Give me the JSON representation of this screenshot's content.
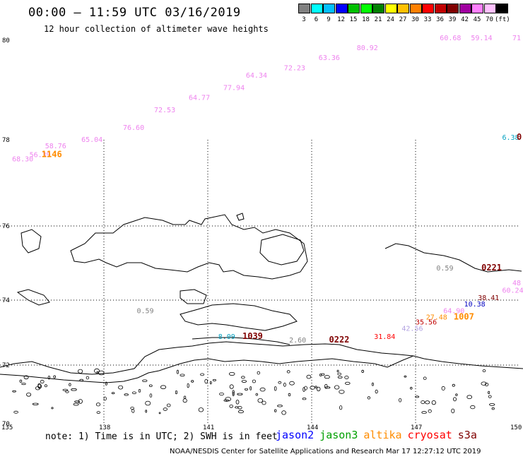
{
  "header": {
    "title": "00:00 – 11:59 UTC 03/16/2019",
    "subtitle": "12 hour collection of altimeter wave heights"
  },
  "colorbar": {
    "colors": [
      "#808080",
      "#00ffff",
      "#00bfff",
      "#0000ff",
      "#00c000",
      "#00ff00",
      "#008000",
      "#ffff00",
      "#ffc000",
      "#ff8000",
      "#ff0000",
      "#c00000",
      "#800000",
      "#a000a0",
      "#ff80ff",
      "#ffc0ff",
      "#000000"
    ],
    "labels": [
      "3",
      "6",
      "9",
      "12",
      "15",
      "18",
      "21",
      "24",
      "27",
      "30",
      "33",
      "36",
      "39",
      "42",
      "45",
      "70",
      "(ft)"
    ]
  },
  "axes": {
    "lat_ticks": [
      "80",
      "78",
      "76",
      "74",
      "72",
      "70"
    ],
    "lon_ticks": [
      "135",
      "138",
      "141",
      "144",
      "147",
      "150"
    ]
  },
  "observations": [
    {
      "text": "68.30",
      "color": "#ee82ee",
      "lon": 135.35,
      "lat": 77.5
    },
    {
      "text": "56.39",
      "color": "#ee82ee",
      "lon": 135.85,
      "lat": 77.6
    },
    {
      "text": "58.76",
      "color": "#ee82ee",
      "lon": 136.3,
      "lat": 77.8
    },
    {
      "text": "1146",
      "color": "#ff8c00",
      "lon": 136.2,
      "lat": 77.6,
      "bold": true
    },
    {
      "text": "65.04",
      "color": "#ee82ee",
      "lon": 137.35,
      "lat": 77.95
    },
    {
      "text": "76.60",
      "color": "#ee82ee",
      "lon": 138.55,
      "lat": 78.2
    },
    {
      "text": "72.53",
      "color": "#ee82ee",
      "lon": 139.45,
      "lat": 78.55
    },
    {
      "text": "64.77",
      "color": "#ee82ee",
      "lon": 140.45,
      "lat": 78.8
    },
    {
      "text": "77.94",
      "color": "#ee82ee",
      "lon": 141.45,
      "lat": 79.0
    },
    {
      "text": "64.34",
      "color": "#ee82ee",
      "lon": 142.1,
      "lat": 79.25
    },
    {
      "text": "72.23",
      "color": "#ee82ee",
      "lon": 143.2,
      "lat": 79.4
    },
    {
      "text": "63.36",
      "color": "#ee82ee",
      "lon": 144.2,
      "lat": 79.6
    },
    {
      "text": "80.92",
      "color": "#ee82ee",
      "lon": 145.3,
      "lat": 79.8
    },
    {
      "text": "60.68",
      "color": "#ee82ee",
      "lon": 147.7,
      "lat": 80.1
    },
    {
      "text": "59.14",
      "color": "#ee82ee",
      "lon": 148.6,
      "lat": 80.2
    },
    {
      "text": "71",
      "color": "#ee82ee",
      "lon": 149.95,
      "lat": 80.35
    },
    {
      "text": "6.38",
      "color": "#00a0c0",
      "lon": 149.5,
      "lat": 78.0
    },
    {
      "text": "0",
      "color": "#800000",
      "lon": 150.0,
      "lat": 78.0,
      "bold": true
    },
    {
      "text": "0.59",
      "color": "#808080",
      "lon": 147.6,
      "lat": 74.8
    },
    {
      "text": "0221",
      "color": "#800000",
      "lon": 148.9,
      "lat": 74.8,
      "bold": true
    },
    {
      "text": "48",
      "color": "#ee82ee",
      "lon": 150.0,
      "lat": 74.4
    },
    {
      "text": "60.24",
      "color": "#ee82ee",
      "lon": 149.5,
      "lat": 74.2
    },
    {
      "text": "38.41",
      "color": "#800000",
      "lon": 148.8,
      "lat": 74.0
    },
    {
      "text": "10.38",
      "color": "#0000c0",
      "lon": 148.4,
      "lat": 73.8
    },
    {
      "text": "64.90",
      "color": "#ee82ee",
      "lon": 147.8,
      "lat": 73.6
    },
    {
      "text": "1007",
      "color": "#ff8c00",
      "lon": 148.1,
      "lat": 73.4,
      "bold": true
    },
    {
      "text": "27.48",
      "color": "#ff8c00",
      "lon": 147.3,
      "lat": 73.4
    },
    {
      "text": "35.56",
      "color": "#c00000",
      "lon": 147.0,
      "lat": 73.25
    },
    {
      "text": "42.56",
      "color": "#b0a0e0",
      "lon": 146.6,
      "lat": 73.05
    },
    {
      "text": "31.84",
      "color": "#ff0000",
      "lon": 145.8,
      "lat": 72.8
    },
    {
      "text": "0.59",
      "color": "#808080",
      "lon": 138.95,
      "lat": 73.6
    },
    {
      "text": "8.09",
      "color": "#00a0c0",
      "lon": 141.3,
      "lat": 72.8
    },
    {
      "text": "1039",
      "color": "#800000",
      "lon": 142.0,
      "lat": 72.8,
      "bold": true
    },
    {
      "text": "2.60",
      "color": "#808080",
      "lon": 143.35,
      "lat": 72.7
    },
    {
      "text": "0222",
      "color": "#800000",
      "lon": 144.5,
      "lat": 72.7,
      "bold": true
    }
  ],
  "note": "note:  1) Time is in UTC; 2) SWH is in feet",
  "satellites": [
    {
      "name": "jason2",
      "color": "#0000ff"
    },
    {
      "name": "jason3",
      "color": "#00a000"
    },
    {
      "name": "altika",
      "color": "#ff8c00"
    },
    {
      "name": "cryosat",
      "color": "#ff0000"
    },
    {
      "name": "s3a",
      "color": "#800000"
    }
  ],
  "footer": "NOAA/NESDIS Center for Satellite Applications and Research   Mar 17 12:27:12 UTC 2019"
}
